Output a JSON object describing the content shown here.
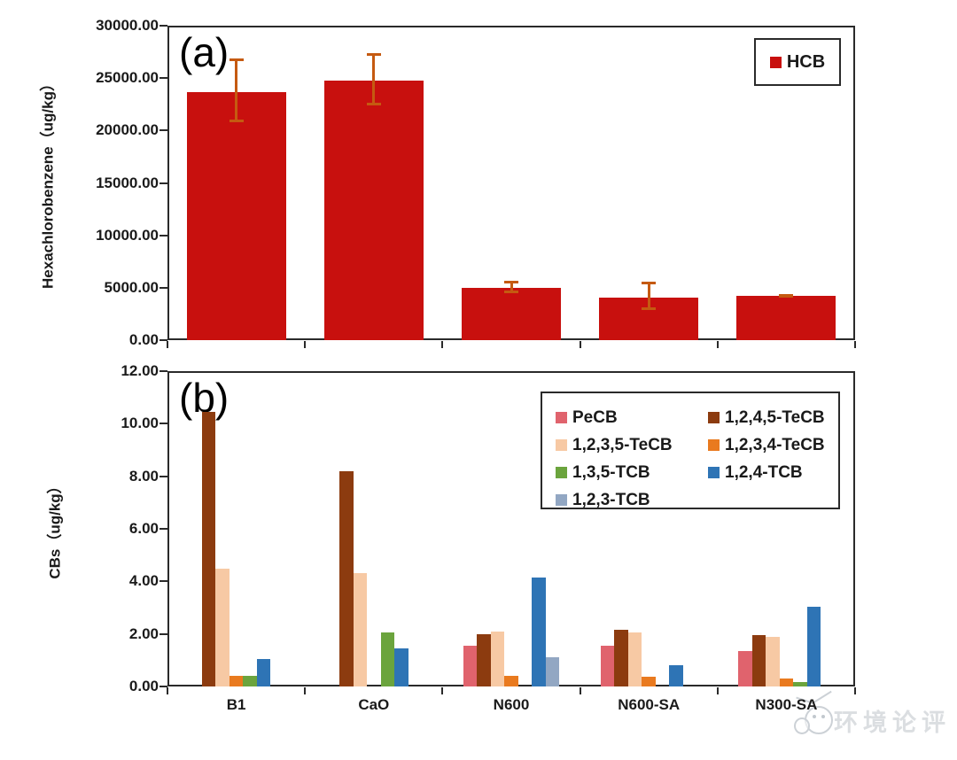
{
  "figure": {
    "panel_a_label": "(a)",
    "panel_b_label": "(b)"
  },
  "watermark": {
    "icon": "wechat-doodle-face",
    "text": "环境论评"
  },
  "chart_data": [
    {
      "type": "bar",
      "panel": "a",
      "title": "",
      "xlabel": "",
      "ylabel": "Hexachlorobenzene（ug/kg）",
      "categories": [
        "B1",
        "CaO",
        "N600",
        "N600-SA",
        "N300-SA"
      ],
      "x_tick_labels_shown": false,
      "ylim": [
        0,
        30000
      ],
      "ytick_step": 5000,
      "ytick_labels": [
        "0.00",
        "5000.00",
        "10000.00",
        "15000.00",
        "20000.00",
        "25000.00",
        "30000.00"
      ],
      "grid": false,
      "legend_position": "top-right",
      "series": [
        {
          "name": "HCB",
          "color": "#C8100E",
          "values": [
            23650,
            24800,
            5000,
            4030,
            4220
          ],
          "error_low": [
            20900,
            22500,
            4580,
            2920,
            4100
          ],
          "error_high": [
            26800,
            27300,
            5610,
            5500,
            4330
          ],
          "error_color": "#C55A11"
        }
      ]
    },
    {
      "type": "grouped-bar",
      "panel": "b",
      "title": "",
      "xlabel": "",
      "ylabel": "CBs（ug/kg）",
      "categories": [
        "B1",
        "CaO",
        "N600",
        "N600-SA",
        "N300-SA"
      ],
      "ylim": [
        0,
        12
      ],
      "ytick_step": 2,
      "ytick_labels": [
        "0.00",
        "2.00",
        "4.00",
        "6.00",
        "8.00",
        "10.00",
        "12.00"
      ],
      "grid": false,
      "legend_position": "top-right-inside",
      "series": [
        {
          "name": "PeCB",
          "color": "#E0636D",
          "values": [
            0,
            0,
            1.55,
            1.55,
            1.35
          ]
        },
        {
          "name": "1,2,4,5-TeCB",
          "color": "#8C3B0F",
          "values": [
            10.45,
            8.2,
            2.0,
            2.15,
            1.95
          ]
        },
        {
          "name": "1,2,3,5-TeCB",
          "color": "#F7C9A4",
          "values": [
            4.5,
            4.3,
            2.1,
            2.05,
            1.9
          ]
        },
        {
          "name": "1,2,3,4-TeCB",
          "color": "#E97A1F",
          "values": [
            0.4,
            0,
            0.4,
            0.37,
            0.3
          ]
        },
        {
          "name": "1,3,5-TCB",
          "color": "#6BA43D",
          "values": [
            0.4,
            2.07,
            0,
            0,
            0.17
          ]
        },
        {
          "name": "1,2,4-TCB",
          "color": "#2E74B5",
          "values": [
            1.05,
            1.44,
            4.15,
            0.8,
            3.05
          ]
        },
        {
          "name": "1,2,3-TCB",
          "color": "#92A7C3",
          "values": [
            0,
            0,
            1.1,
            0,
            0
          ]
        }
      ]
    }
  ]
}
